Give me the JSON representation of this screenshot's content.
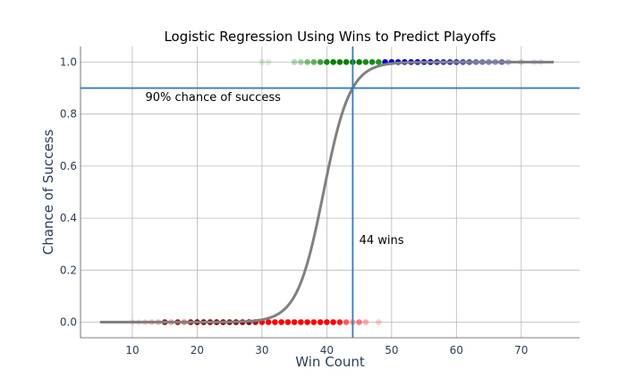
{
  "chart_data": {
    "type": "scatter",
    "title": "Logistic Regression Using Wins to Predict Playoffs",
    "xlabel": "Win Count",
    "ylabel": "Chance of Success",
    "xlim": [
      2,
      79
    ],
    "ylim": [
      -0.06,
      1.06
    ],
    "xticks": [
      10,
      20,
      30,
      40,
      50,
      60,
      70
    ],
    "yticks": [
      0.0,
      0.2,
      0.4,
      0.6,
      0.8,
      1.0
    ],
    "xtick_labels": [
      "10",
      "20",
      "30",
      "40",
      "50",
      "60",
      "70"
    ],
    "ytick_labels": [
      "0.0",
      "0.2",
      "0.4",
      "0.6",
      "0.8",
      "1.0"
    ],
    "grid": true,
    "series": [
      {
        "role": "success-points",
        "y": 1.0,
        "x": [
          30,
          31,
          35,
          36,
          37,
          38,
          39,
          40,
          41,
          42,
          43,
          44,
          45,
          46,
          47,
          48,
          49,
          50,
          51,
          52,
          53,
          54,
          55,
          56,
          57,
          58,
          59,
          60,
          61,
          62,
          63,
          64,
          65,
          66,
          67,
          68,
          70,
          72,
          73
        ],
        "opacity": [
          0.15,
          0.15,
          0.3,
          0.35,
          0.5,
          0.6,
          0.75,
          0.9,
          1.0,
          1.0,
          1.0,
          1.0,
          1.0,
          0.9,
          0.9,
          0.85,
          1.0,
          1.0,
          1.0,
          1.0,
          1.0,
          1.0,
          1.0,
          1.0,
          0.9,
          0.85,
          0.85,
          0.8,
          0.75,
          0.7,
          0.6,
          0.55,
          0.5,
          0.45,
          0.6,
          0.3,
          0.2,
          0.15,
          0.15
        ],
        "colors": [
          "#008000",
          "#008000",
          "#008000",
          "#008000",
          "#008000",
          "#008000",
          "#008000",
          "#008000",
          "#008000",
          "#008000",
          "#008000",
          "#008000",
          "#008000",
          "#008000",
          "#008000",
          "#008000",
          "#0000cc",
          "#0000cc",
          "#0000cc",
          "#0000cc",
          "#0000cc",
          "#0000cc",
          "#0000cc",
          "#0000cc",
          "#0000cc",
          "#0000cc",
          "#0000cc",
          "#0000cc",
          "#0000cc",
          "#0000cc",
          "#0000cc",
          "#0000cc",
          "#0000cc",
          "#0000cc",
          "#0000cc",
          "#0000cc",
          "#0000cc",
          "#0000cc",
          "#0000cc"
        ]
      },
      {
        "role": "failure-points",
        "y": 0.0,
        "x": [
          10,
          11,
          12,
          13,
          14,
          15,
          16,
          17,
          18,
          19,
          20,
          21,
          22,
          23,
          24,
          25,
          26,
          27,
          28,
          29,
          30,
          31,
          32,
          33,
          34,
          35,
          36,
          37,
          38,
          39,
          40,
          41,
          42,
          43,
          44,
          45,
          46,
          48
        ],
        "opacity": [
          0.15,
          0.15,
          0.2,
          0.25,
          0.3,
          0.9,
          0.35,
          0.9,
          0.5,
          0.95,
          1.0,
          1.0,
          1.0,
          1.0,
          1.0,
          1.0,
          1.0,
          1.0,
          1.0,
          1.0,
          1.0,
          1.0,
          1.0,
          1.0,
          1.0,
          1.0,
          1.0,
          1.0,
          1.0,
          1.0,
          1.0,
          1.0,
          0.9,
          0.6,
          0.35,
          0.5,
          0.3,
          0.2
        ],
        "colors": [
          "#ff0000",
          "#ff0000",
          "#ff0000",
          "#ff0000",
          "#ff0000",
          "#8b0000",
          "#ff0000",
          "#8b0000",
          "#ff0000",
          "#8b0000",
          "#8b0000",
          "#8b0000",
          "#8b0000",
          "#8b0000",
          "#8b0000",
          "#8b0000",
          "#8b0000",
          "#8b0000",
          "#8b0000",
          "#cc0000",
          "#ff0000",
          "#ff0000",
          "#ff0000",
          "#ff0000",
          "#ff0000",
          "#ff0000",
          "#ff0000",
          "#ff0000",
          "#ff0000",
          "#ff0000",
          "#ff0000",
          "#ff0000",
          "#ff0000",
          "#ff0000",
          "#ff0000",
          "#ff0000",
          "#ff0000",
          "#ff0000"
        ]
      }
    ],
    "logistic_curve": {
      "color": "#808080",
      "x_range": [
        5,
        75
      ],
      "midpoint": 39.5,
      "slope": 0.49
    },
    "reference_lines": {
      "color": "#3a7bb5",
      "horizontal_y": 0.9,
      "vertical_x": 44
    },
    "annotations": [
      {
        "text": "90% chance of success",
        "x": 12,
        "y": 0.85
      },
      {
        "text": "44 wins",
        "x": 45,
        "y": 0.3
      }
    ]
  }
}
